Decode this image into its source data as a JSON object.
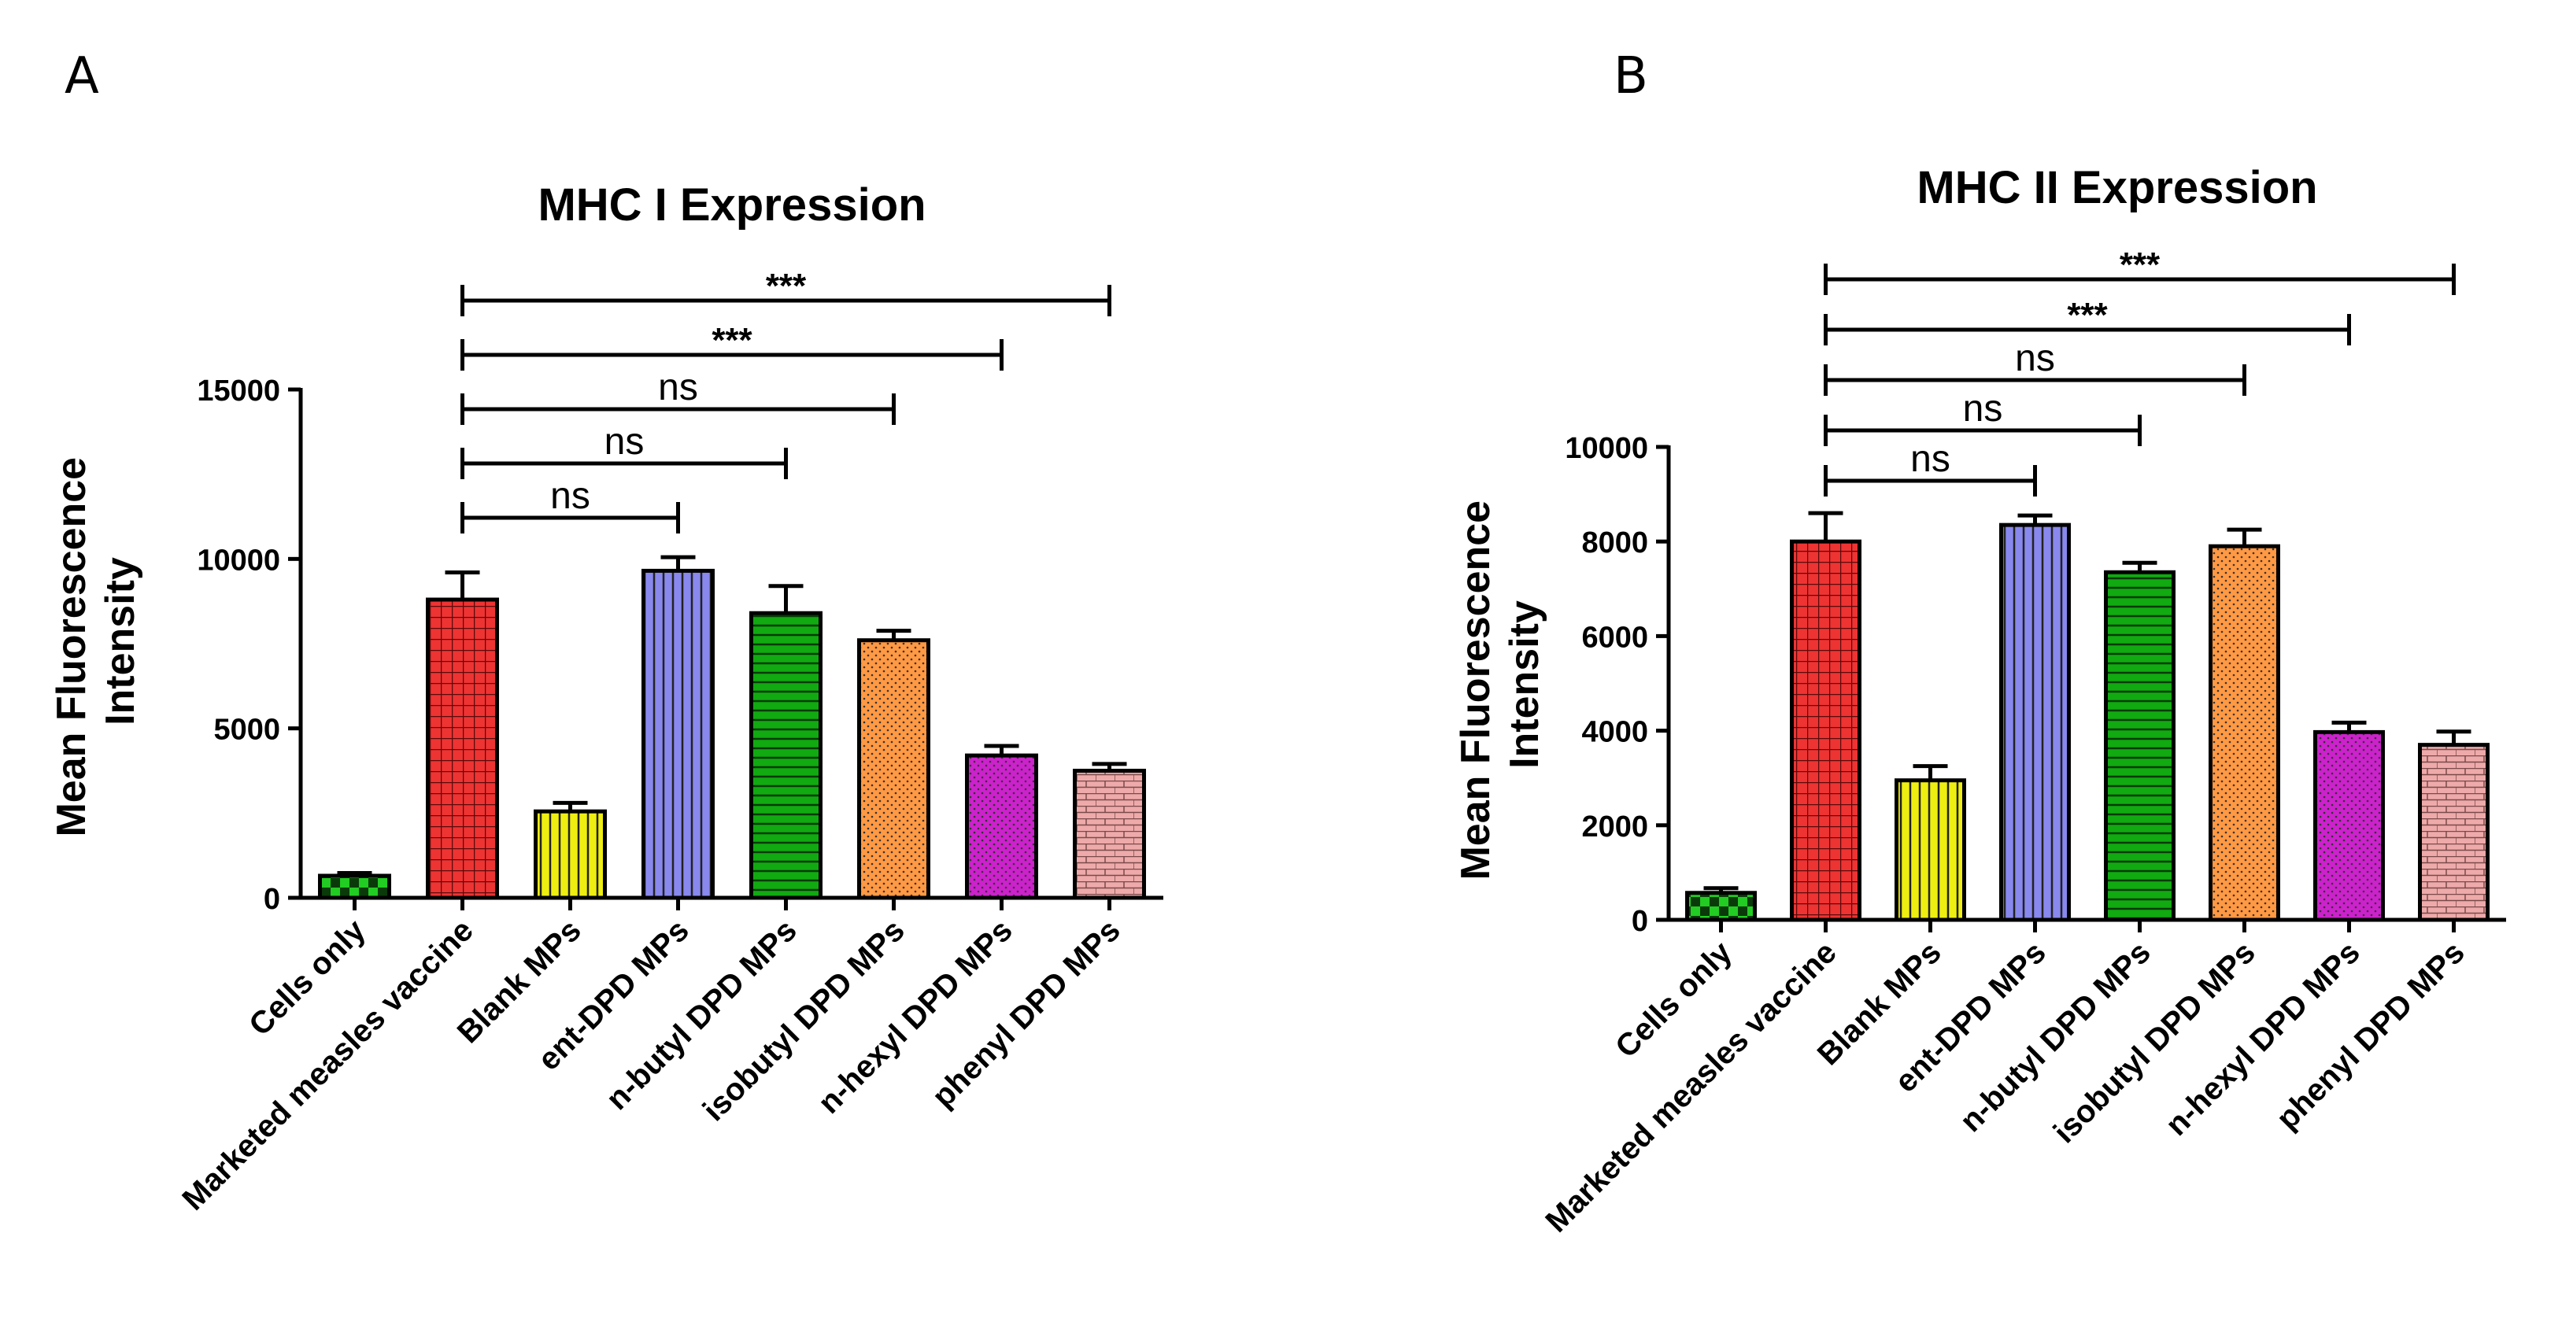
{
  "panels": [
    {
      "letter": "A",
      "chart_data": {
        "type": "bar",
        "title": "MHC I Expression",
        "ylabel": "Mean Fluorescence Intensity",
        "xlabel": "",
        "ylim": [
          0,
          15000
        ],
        "yticks": [
          0,
          5000,
          10000,
          15000
        ],
        "categories": [
          "Cells only",
          "Marketed measles vaccine",
          "Blank MPs",
          "ent-DPD MPs",
          "n-butyl DPD MPs",
          "isobutyl DPD MPs",
          "n-hexyl DPD MPs",
          "phenyl DPD MPs"
        ],
        "values": [
          650,
          8800,
          2550,
          9650,
          8400,
          7600,
          4200,
          3750
        ],
        "errors": [
          80,
          800,
          250,
          400,
          800,
          280,
          280,
          200
        ],
        "colors": [
          "#22cc22",
          "#ee3333",
          "#eeee11",
          "#8888ee",
          "#11aa11",
          "#ff9944",
          "#cc22cc",
          "#eeaaaa"
        ],
        "patterns": [
          "checker",
          "grid",
          "vlines",
          "vlines",
          "hlines",
          "dots",
          "dots",
          "bricks"
        ],
        "significance": [
          {
            "from": 1,
            "to": 7,
            "label": "***"
          },
          {
            "from": 1,
            "to": 6,
            "label": "***"
          },
          {
            "from": 1,
            "to": 5,
            "label": "ns"
          },
          {
            "from": 1,
            "to": 4,
            "label": "ns"
          },
          {
            "from": 1,
            "to": 3,
            "label": "ns"
          }
        ]
      }
    },
    {
      "letter": "B",
      "chart_data": {
        "type": "bar",
        "title": "MHC II Expression",
        "ylabel": "Mean Fluorescence Intensity",
        "xlabel": "",
        "ylim": [
          0,
          10000
        ],
        "yticks": [
          0,
          2000,
          4000,
          6000,
          8000,
          10000
        ],
        "categories": [
          "Cells only",
          "Marketed measles vaccine",
          "Blank MPs",
          "ent-DPD MPs",
          "n-butyl DPD MPs",
          "isobutyl DPD MPs",
          "n-hexyl DPD MPs",
          "phenyl DPD MPs"
        ],
        "values": [
          570,
          8000,
          2950,
          8350,
          7350,
          7900,
          3970,
          3700
        ],
        "errors": [
          100,
          600,
          300,
          200,
          200,
          350,
          200,
          280
        ],
        "colors": [
          "#22cc22",
          "#ee3333",
          "#eeee11",
          "#8888ee",
          "#11aa11",
          "#ff9944",
          "#cc22cc",
          "#eeaaaa"
        ],
        "patterns": [
          "checker",
          "grid",
          "vlines",
          "vlines",
          "hlines",
          "dots",
          "dots",
          "bricks"
        ],
        "significance": [
          {
            "from": 1,
            "to": 7,
            "label": "***"
          },
          {
            "from": 1,
            "to": 6,
            "label": "***"
          },
          {
            "from": 1,
            "to": 5,
            "label": "ns"
          },
          {
            "from": 1,
            "to": 4,
            "label": "ns"
          },
          {
            "from": 1,
            "to": 3,
            "label": "ns"
          }
        ]
      }
    }
  ]
}
